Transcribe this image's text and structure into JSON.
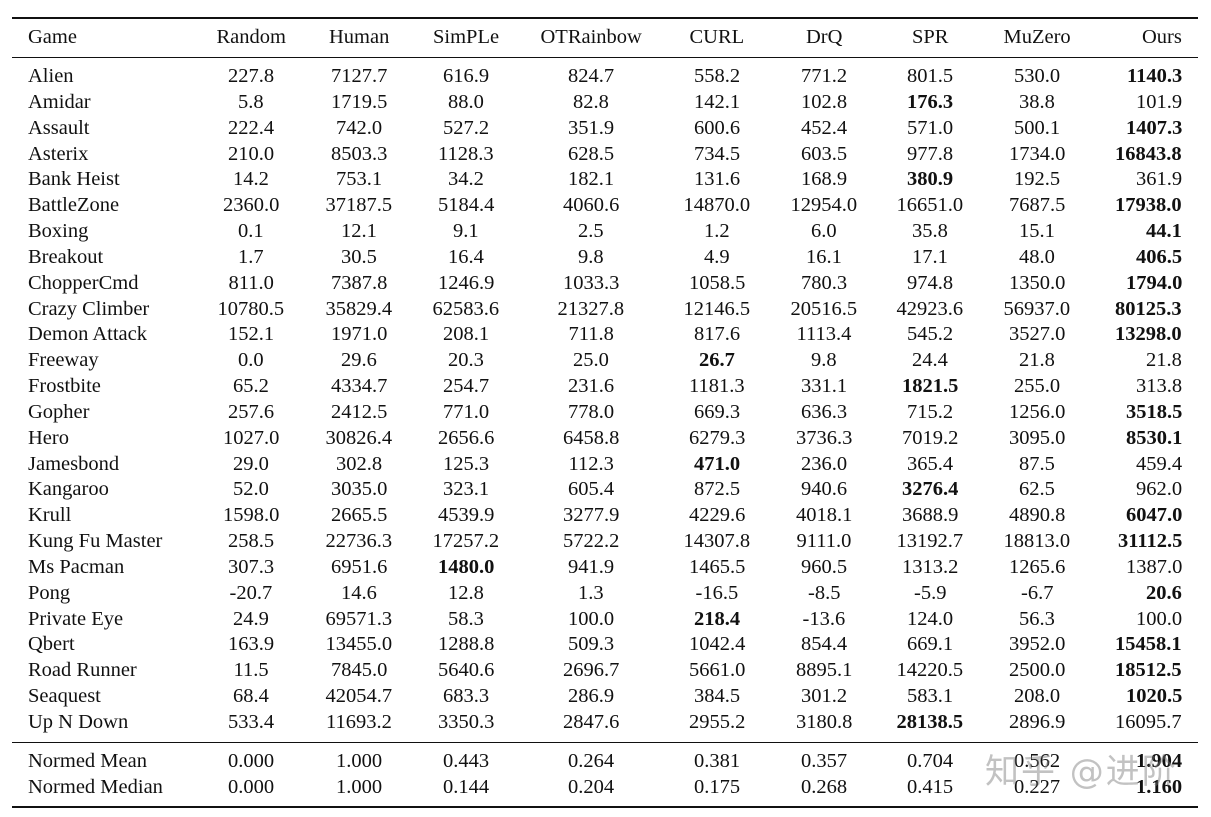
{
  "headers": [
    "Game",
    "Random",
    "Human",
    "SimPLe",
    "OTRainbow",
    "CURL",
    "DrQ",
    "SPR",
    "MuZero",
    "Ours"
  ],
  "rows": [
    {
      "game": "Alien",
      "values": [
        "227.8",
        "7127.7",
        "616.9",
        "824.7",
        "558.2",
        "771.2",
        "801.5",
        "530.0",
        "1140.3"
      ],
      "bold": 8
    },
    {
      "game": "Amidar",
      "values": [
        "5.8",
        "1719.5",
        "88.0",
        "82.8",
        "142.1",
        "102.8",
        "176.3",
        "38.8",
        "101.9"
      ],
      "bold": 6
    },
    {
      "game": "Assault",
      "values": [
        "222.4",
        "742.0",
        "527.2",
        "351.9",
        "600.6",
        "452.4",
        "571.0",
        "500.1",
        "1407.3"
      ],
      "bold": 8
    },
    {
      "game": "Asterix",
      "values": [
        "210.0",
        "8503.3",
        "1128.3",
        "628.5",
        "734.5",
        "603.5",
        "977.8",
        "1734.0",
        "16843.8"
      ],
      "bold": 8
    },
    {
      "game": "Bank Heist",
      "values": [
        "14.2",
        "753.1",
        "34.2",
        "182.1",
        "131.6",
        "168.9",
        "380.9",
        "192.5",
        "361.9"
      ],
      "bold": 6
    },
    {
      "game": "BattleZone",
      "values": [
        "2360.0",
        "37187.5",
        "5184.4",
        "4060.6",
        "14870.0",
        "12954.0",
        "16651.0",
        "7687.5",
        "17938.0"
      ],
      "bold": 8
    },
    {
      "game": "Boxing",
      "values": [
        "0.1",
        "12.1",
        "9.1",
        "2.5",
        "1.2",
        "6.0",
        "35.8",
        "15.1",
        "44.1"
      ],
      "bold": 8
    },
    {
      "game": "Breakout",
      "values": [
        "1.7",
        "30.5",
        "16.4",
        "9.8",
        "4.9",
        "16.1",
        "17.1",
        "48.0",
        "406.5"
      ],
      "bold": 8
    },
    {
      "game": "ChopperCmd",
      "values": [
        "811.0",
        "7387.8",
        "1246.9",
        "1033.3",
        "1058.5",
        "780.3",
        "974.8",
        "1350.0",
        "1794.0"
      ],
      "bold": 8
    },
    {
      "game": "Crazy Climber",
      "values": [
        "10780.5",
        "35829.4",
        "62583.6",
        "21327.8",
        "12146.5",
        "20516.5",
        "42923.6",
        "56937.0",
        "80125.3"
      ],
      "bold": 8
    },
    {
      "game": "Demon Attack",
      "values": [
        "152.1",
        "1971.0",
        "208.1",
        "711.8",
        "817.6",
        "1113.4",
        "545.2",
        "3527.0",
        "13298.0"
      ],
      "bold": 8
    },
    {
      "game": "Freeway",
      "values": [
        "0.0",
        "29.6",
        "20.3",
        "25.0",
        "26.7",
        "9.8",
        "24.4",
        "21.8",
        "21.8"
      ],
      "bold": 4
    },
    {
      "game": "Frostbite",
      "values": [
        "65.2",
        "4334.7",
        "254.7",
        "231.6",
        "1181.3",
        "331.1",
        "1821.5",
        "255.0",
        "313.8"
      ],
      "bold": 6
    },
    {
      "game": "Gopher",
      "values": [
        "257.6",
        "2412.5",
        "771.0",
        "778.0",
        "669.3",
        "636.3",
        "715.2",
        "1256.0",
        "3518.5"
      ],
      "bold": 8
    },
    {
      "game": "Hero",
      "values": [
        "1027.0",
        "30826.4",
        "2656.6",
        "6458.8",
        "6279.3",
        "3736.3",
        "7019.2",
        "3095.0",
        "8530.1"
      ],
      "bold": 8
    },
    {
      "game": "Jamesbond",
      "values": [
        "29.0",
        "302.8",
        "125.3",
        "112.3",
        "471.0",
        "236.0",
        "365.4",
        "87.5",
        "459.4"
      ],
      "bold": 4
    },
    {
      "game": "Kangaroo",
      "values": [
        "52.0",
        "3035.0",
        "323.1",
        "605.4",
        "872.5",
        "940.6",
        "3276.4",
        "62.5",
        "962.0"
      ],
      "bold": 6
    },
    {
      "game": "Krull",
      "values": [
        "1598.0",
        "2665.5",
        "4539.9",
        "3277.9",
        "4229.6",
        "4018.1",
        "3688.9",
        "4890.8",
        "6047.0"
      ],
      "bold": 8
    },
    {
      "game": "Kung Fu Master",
      "values": [
        "258.5",
        "22736.3",
        "17257.2",
        "5722.2",
        "14307.8",
        "9111.0",
        "13192.7",
        "18813.0",
        "31112.5"
      ],
      "bold": 8
    },
    {
      "game": "Ms Pacman",
      "values": [
        "307.3",
        "6951.6",
        "1480.0",
        "941.9",
        "1465.5",
        "960.5",
        "1313.2",
        "1265.6",
        "1387.0"
      ],
      "bold": 2
    },
    {
      "game": "Pong",
      "values": [
        "-20.7",
        "14.6",
        "12.8",
        "1.3",
        "-16.5",
        "-8.5",
        "-5.9",
        "-6.7",
        "20.6"
      ],
      "bold": 8
    },
    {
      "game": "Private Eye",
      "values": [
        "24.9",
        "69571.3",
        "58.3",
        "100.0",
        "218.4",
        "-13.6",
        "124.0",
        "56.3",
        "100.0"
      ],
      "bold": 4
    },
    {
      "game": "Qbert",
      "values": [
        "163.9",
        "13455.0",
        "1288.8",
        "509.3",
        "1042.4",
        "854.4",
        "669.1",
        "3952.0",
        "15458.1"
      ],
      "bold": 8
    },
    {
      "game": "Road Runner",
      "values": [
        "11.5",
        "7845.0",
        "5640.6",
        "2696.7",
        "5661.0",
        "8895.1",
        "14220.5",
        "2500.0",
        "18512.5"
      ],
      "bold": 8
    },
    {
      "game": "Seaquest",
      "values": [
        "68.4",
        "42054.7",
        "683.3",
        "286.9",
        "384.5",
        "301.2",
        "583.1",
        "208.0",
        "1020.5"
      ],
      "bold": 8
    },
    {
      "game": "Up N Down",
      "values": [
        "533.4",
        "11693.2",
        "3350.3",
        "2847.6",
        "2955.2",
        "3180.8",
        "28138.5",
        "2896.9",
        "16095.7"
      ],
      "bold": 6
    }
  ],
  "summary": [
    {
      "game": "Normed Mean",
      "values": [
        "0.000",
        "1.000",
        "0.443",
        "0.264",
        "0.381",
        "0.357",
        "0.704",
        "0.562",
        "1.904"
      ],
      "bold": 8
    },
    {
      "game": "Normed Median",
      "values": [
        "0.000",
        "1.000",
        "0.144",
        "0.204",
        "0.175",
        "0.268",
        "0.415",
        "0.227",
        "1.160"
      ],
      "bold": 8
    }
  ],
  "watermark": "知乎 @进阶"
}
